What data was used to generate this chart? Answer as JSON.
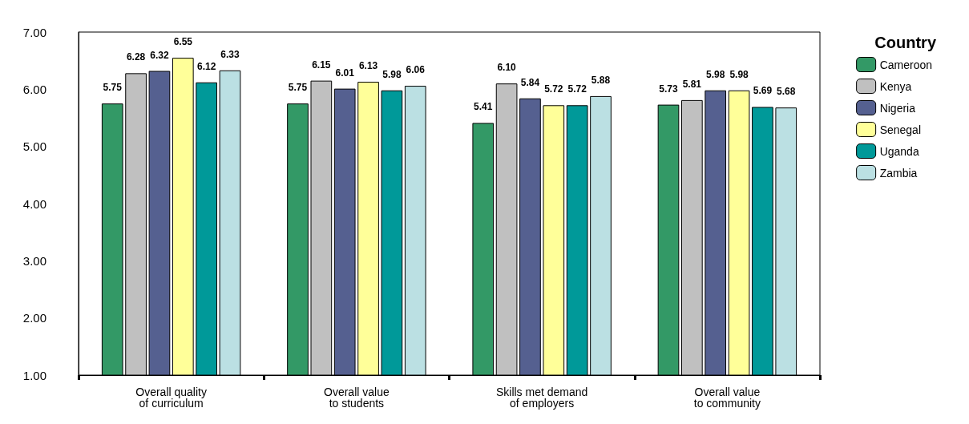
{
  "chart_data": {
    "type": "bar",
    "categories": [
      "Overall quality\nof curriculum",
      "Overall value\nto students",
      "Skills met demand\nof employers",
      "Overall value\nto community"
    ],
    "series": [
      {
        "name": "Cameroon",
        "color": "#339966",
        "values": [
          5.75,
          5.75,
          5.41,
          5.73
        ],
        "value_labels": [
          "5.75",
          "5.75",
          "5.41",
          "5.73"
        ]
      },
      {
        "name": "Kenya",
        "color": "#c0c0c0",
        "values": [
          6.28,
          6.15,
          6.1,
          5.81
        ],
        "value_labels": [
          "6.28",
          "6.15",
          "6.10",
          "5.81"
        ]
      },
      {
        "name": "Nigeria",
        "color": "#556090",
        "values": [
          6.32,
          6.01,
          5.84,
          5.98
        ],
        "value_labels": [
          "6.32",
          "6.01",
          "5.84",
          "5.98"
        ]
      },
      {
        "name": "Senegal",
        "color": "#ffff99",
        "values": [
          6.55,
          6.13,
          5.72,
          5.98
        ],
        "value_labels": [
          "6.55",
          "6.13",
          "5.72",
          "5.98"
        ]
      },
      {
        "name": "Uganda",
        "color": "#009999",
        "values": [
          6.12,
          5.98,
          5.72,
          5.69
        ],
        "value_labels": [
          "6.12",
          "5.98",
          "5.72",
          "5.69"
        ]
      },
      {
        "name": "Zambia",
        "color": "#bbe0e3",
        "values": [
          6.33,
          6.06,
          5.88,
          5.68
        ],
        "value_labels": [
          "6.33",
          "6.06",
          "5.88",
          "5.68"
        ]
      }
    ],
    "legend_title": "Country",
    "legend": "right",
    "ylim": [
      1,
      7
    ],
    "yticks": [
      {
        "value": 1,
        "label": "1.00"
      },
      {
        "value": 2,
        "label": "2.00"
      },
      {
        "value": 3,
        "label": "3.00"
      },
      {
        "value": 4,
        "label": "4.00"
      },
      {
        "value": 5,
        "label": "5.00"
      },
      {
        "value": 6,
        "label": "6.00"
      },
      {
        "value": 7,
        "label": "7.00"
      }
    ],
    "grid": false
  }
}
